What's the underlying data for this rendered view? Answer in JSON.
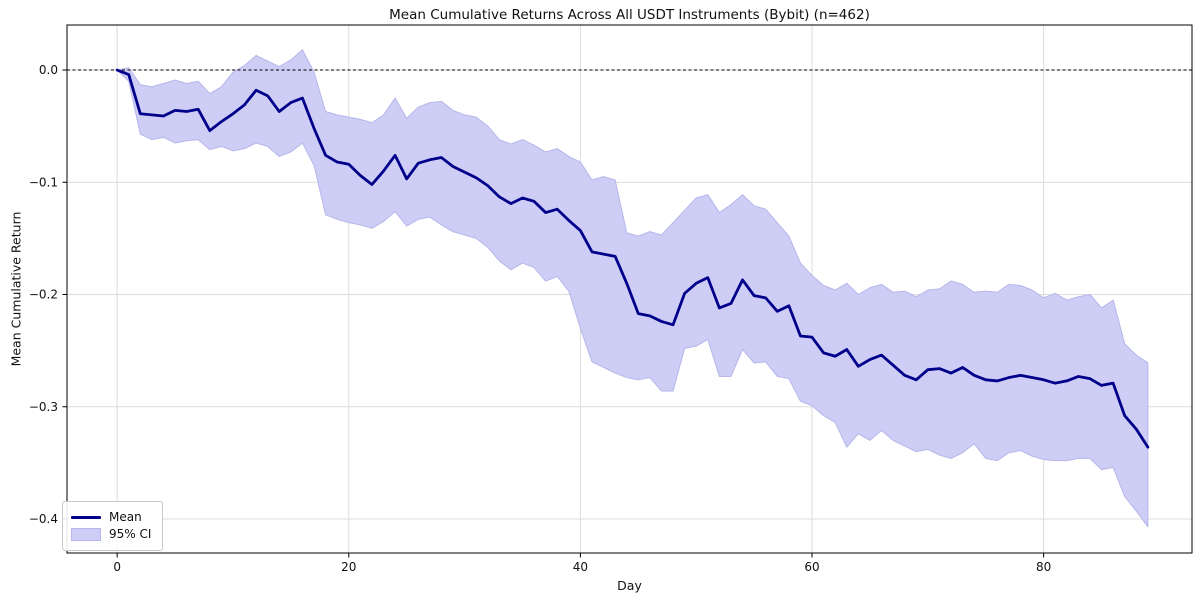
{
  "figure": {
    "title": "Mean Cumulative Returns Across All USDT Instruments (Bybit) (n=462)",
    "xlabel": "Day",
    "ylabel": "Mean Cumulative Return"
  },
  "legend": {
    "items": [
      {
        "label": "Mean",
        "swatch": "line"
      },
      {
        "label": "95% CI",
        "swatch": "patch"
      }
    ]
  },
  "colors": {
    "mean_line": "#00008b",
    "ci_band_fill": "#cdcdf5",
    "ci_band_edge": "#b6b6ea",
    "grid": "#dcdcdc",
    "zero_line": "#000000",
    "spine": "#000000",
    "text": "#111111"
  },
  "chart_data": {
    "type": "line",
    "title": "Mean Cumulative Returns Across All USDT Instruments (Bybit) (n=462)",
    "xlabel": "Day",
    "ylabel": "Mean Cumulative Return",
    "n_instruments": 462,
    "x_days": {
      "from": 0,
      "to": 89,
      "step": 1
    },
    "xlim": [
      -4.33,
      92.81
    ],
    "ylim": [
      -0.4303,
      0.0401
    ],
    "xtick_values": [
      0,
      20,
      40,
      60,
      80
    ],
    "xtick_labels": [
      "0",
      "20",
      "40",
      "60",
      "80"
    ],
    "ytick_values": [
      0.0,
      -0.1,
      -0.2,
      -0.3,
      -0.4
    ],
    "ytick_labels": [
      "0.0",
      "−0.1",
      "−0.2",
      "−0.3",
      "−0.4"
    ],
    "grid": true,
    "zero_dashed_line_at": 0.0,
    "legend_position": "lower left",
    "series": [
      {
        "name": "Mean",
        "color": "#00008b",
        "values": [
          0.0,
          -0.004,
          -0.039,
          -0.04,
          -0.041,
          -0.036,
          -0.037,
          -0.035,
          -0.054,
          -0.046,
          -0.039,
          -0.031,
          -0.018,
          -0.023,
          -0.037,
          -0.029,
          -0.025,
          -0.052,
          -0.076,
          -0.082,
          -0.084,
          -0.094,
          -0.102,
          -0.09,
          -0.076,
          -0.097,
          -0.083,
          -0.08,
          -0.078,
          -0.086,
          -0.091,
          -0.096,
          -0.103,
          -0.113,
          -0.119,
          -0.114,
          -0.117,
          -0.127,
          -0.124,
          -0.134,
          -0.143,
          -0.162,
          -0.164,
          -0.166,
          -0.19,
          -0.217,
          -0.219,
          -0.224,
          -0.227,
          -0.199,
          -0.19,
          -0.185,
          -0.212,
          -0.208,
          -0.187,
          -0.201,
          -0.203,
          -0.215,
          -0.21,
          -0.237,
          -0.238,
          -0.252,
          -0.255,
          -0.249,
          -0.264,
          -0.258,
          -0.254,
          -0.263,
          -0.272,
          -0.276,
          -0.267,
          -0.266,
          -0.27,
          -0.265,
          -0.272,
          -0.276,
          -0.277,
          -0.274,
          -0.272,
          -0.274,
          -0.276,
          -0.279,
          -0.277,
          -0.273,
          -0.275,
          -0.281,
          -0.279,
          -0.308,
          -0.32,
          -0.336
        ]
      }
    ],
    "band": {
      "name": "95% CI",
      "fill": "#cdcdf5",
      "upper": [
        0.0,
        0.002,
        -0.013,
        -0.015,
        -0.012,
        -0.009,
        -0.012,
        -0.01,
        -0.021,
        -0.015,
        -0.002,
        0.004,
        0.013,
        0.008,
        0.003,
        0.009,
        0.018,
        -0.002,
        -0.037,
        -0.04,
        -0.042,
        -0.044,
        -0.047,
        -0.04,
        -0.025,
        -0.043,
        -0.033,
        -0.029,
        -0.028,
        -0.036,
        -0.04,
        -0.042,
        -0.05,
        -0.062,
        -0.066,
        -0.062,
        -0.067,
        -0.073,
        -0.07,
        -0.077,
        -0.082,
        -0.098,
        -0.095,
        -0.098,
        -0.145,
        -0.148,
        -0.144,
        -0.147,
        -0.136,
        -0.125,
        -0.114,
        -0.111,
        -0.127,
        -0.12,
        -0.111,
        -0.121,
        -0.124,
        -0.136,
        -0.148,
        -0.172,
        -0.183,
        -0.192,
        -0.196,
        -0.19,
        -0.2,
        -0.194,
        -0.191,
        -0.198,
        -0.197,
        -0.202,
        -0.196,
        -0.195,
        -0.188,
        -0.191,
        -0.198,
        -0.197,
        -0.198,
        -0.191,
        -0.192,
        -0.196,
        -0.203,
        -0.199,
        -0.205,
        -0.202,
        -0.2,
        -0.212,
        -0.205,
        -0.244,
        -0.254,
        -0.261
      ],
      "lower": [
        0.0,
        -0.01,
        -0.057,
        -0.062,
        -0.06,
        -0.065,
        -0.063,
        -0.062,
        -0.071,
        -0.068,
        -0.072,
        -0.07,
        -0.065,
        -0.068,
        -0.077,
        -0.073,
        -0.065,
        -0.085,
        -0.129,
        -0.133,
        -0.136,
        -0.138,
        -0.141,
        -0.135,
        -0.126,
        -0.139,
        -0.133,
        -0.131,
        -0.138,
        -0.144,
        -0.147,
        -0.15,
        -0.158,
        -0.17,
        -0.178,
        -0.172,
        -0.176,
        -0.188,
        -0.184,
        -0.197,
        -0.23,
        -0.26,
        -0.265,
        -0.27,
        -0.274,
        -0.276,
        -0.274,
        -0.286,
        -0.286,
        -0.248,
        -0.246,
        -0.24,
        -0.273,
        -0.273,
        -0.249,
        -0.261,
        -0.26,
        -0.273,
        -0.275,
        -0.295,
        -0.299,
        -0.308,
        -0.314,
        -0.336,
        -0.324,
        -0.33,
        -0.321,
        -0.33,
        -0.335,
        -0.34,
        -0.338,
        -0.343,
        -0.346,
        -0.341,
        -0.333,
        -0.346,
        -0.348,
        -0.341,
        -0.339,
        -0.344,
        -0.347,
        -0.348,
        -0.348,
        -0.346,
        -0.346,
        -0.356,
        -0.354,
        -0.38,
        -0.393,
        -0.407
      ]
    }
  }
}
